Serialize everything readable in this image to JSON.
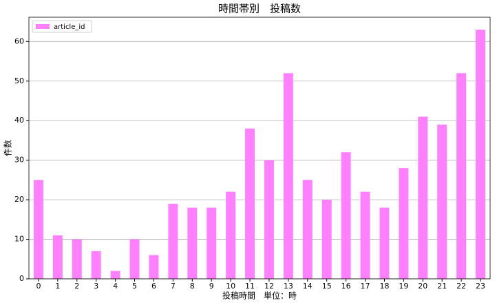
{
  "chart_data": {
    "type": "bar",
    "title": "時間帯別　投稿数",
    "x_label": "投稿時間　単位：時",
    "y_label": "件数",
    "categories": [
      "0",
      "1",
      "2",
      "3",
      "4",
      "5",
      "6",
      "7",
      "8",
      "9",
      "10",
      "11",
      "12",
      "13",
      "14",
      "15",
      "16",
      "17",
      "18",
      "19",
      "20",
      "21",
      "22",
      "23"
    ],
    "series": [
      {
        "name": "article_id",
        "color": "#ff80ff",
        "values": [
          25,
          11,
          10,
          7,
          2,
          10,
          6,
          19,
          18,
          18,
          22,
          38,
          30,
          52,
          25,
          20,
          32,
          22,
          18,
          28,
          41,
          39,
          52,
          63
        ]
      }
    ],
    "ylim": [
      0,
      66.15
    ],
    "yticks": [
      0,
      10,
      20,
      30,
      40,
      50,
      60
    ],
    "grid": true,
    "legend": "upper left"
  }
}
